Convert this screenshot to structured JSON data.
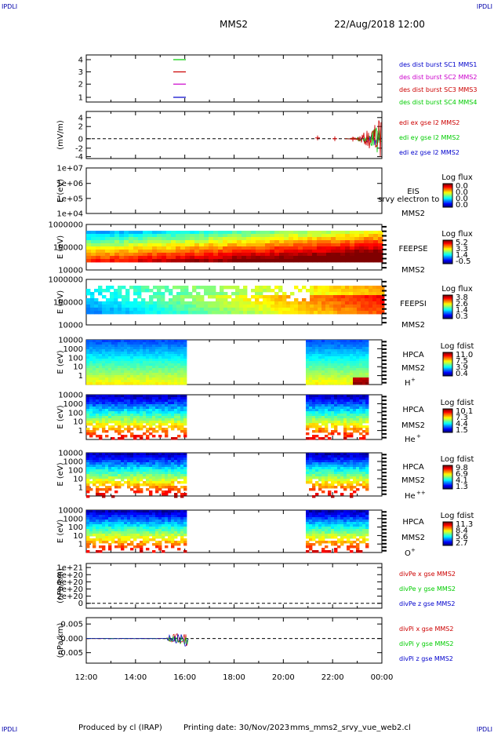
{
  "corner_marks": {
    "tl": "IPDLI",
    "tr": "IPDLI",
    "bl": "IPDLI",
    "br": "IPDLI"
  },
  "header": {
    "title": "MMS2",
    "datetime": "22/Aug/2018 12:00"
  },
  "footer": {
    "producer": "Produced by cl (IRAP)",
    "printing": "Printing date: 30/Nov/2023",
    "script": "mms_mms2_srvy_vue_web2.cl"
  },
  "colors": {
    "c1": "#00cc00",
    "c2": "#cc0000",
    "c3": "#cc00cc",
    "c4": "#0000cc",
    "x": "#cc0000",
    "y": "#00cc00",
    "z": "#0000cc"
  },
  "xaxis": {
    "ticks": [
      "12:00",
      "14:00",
      "16:00",
      "18:00",
      "20:00",
      "22:00",
      "00:00"
    ]
  },
  "chart_data": [
    {
      "type": "line",
      "panel": "availability",
      "ylabel": "",
      "yticks": [
        "4",
        "3",
        "2",
        "1"
      ],
      "legend": [
        "des dist burst SC1 MMS1",
        "des dist burst SC2 MMS2",
        "des dist burst SC3 MMS3",
        "des dist burst SC4 MMS4"
      ]
    },
    {
      "type": "line",
      "panel": "edi",
      "ylabel": "(mV/m)",
      "ylim": [
        -4,
        5
      ],
      "yticks": [
        "4",
        "2",
        "0",
        "-2",
        "-4"
      ],
      "legend": [
        "edi ex gse l2 MMS2",
        "edi ey gse l2 MMS2",
        "edi ez gse l2 MMS2"
      ]
    },
    {
      "type": "heatmap",
      "panel": "eis",
      "ylabel": "E (eV)",
      "yticks": [
        "1e+07",
        "1e+06",
        "1e+05",
        "1e+04"
      ],
      "instrument": [
        "EIS",
        "MMS2"
      ],
      "overlay_text": "srvy electron to",
      "colorbar": {
        "title": "Log flux",
        "ticks": [
          "0.0",
          "0.0",
          "0.0",
          "0.0"
        ]
      }
    },
    {
      "type": "heatmap",
      "panel": "feepse",
      "ylabel": "E (eV)",
      "yticks": [
        "1000000",
        "100000",
        "10000"
      ],
      "instrument": [
        "FEEPSE",
        "MMS2"
      ],
      "colorbar": {
        "title": "Log flux",
        "ticks": [
          "5.2",
          "3.3",
          "1.4",
          "-0.5"
        ]
      }
    },
    {
      "type": "heatmap",
      "panel": "feepsi",
      "ylabel": "E (eV)",
      "yticks": [
        "1000000",
        "100000",
        "10000"
      ],
      "instrument": [
        "FEEPSI",
        "MMS2"
      ],
      "colorbar": {
        "title": "Log flux",
        "ticks": [
          "3.8",
          "2.6",
          "1.4",
          "0.3"
        ]
      }
    },
    {
      "type": "heatmap",
      "panel": "hpca_h",
      "ylabel": "E (eV)",
      "yticks": [
        "10000",
        "1000",
        "100",
        "10",
        "1"
      ],
      "instrument": [
        "HPCA",
        "MMS2"
      ],
      "species": "H",
      "species_sup": "+",
      "colorbar": {
        "title": "Log fdist",
        "ticks": [
          "11.0",
          "7.5",
          "3.9",
          "0.4"
        ]
      }
    },
    {
      "type": "heatmap",
      "panel": "hpca_he",
      "ylabel": "E (eV)",
      "yticks": [
        "10000",
        "1000",
        "100",
        "10",
        "1"
      ],
      "instrument": [
        "HPCA",
        "MMS2"
      ],
      "species": "He",
      "species_sup": "+",
      "colorbar": {
        "title": "Log fdist",
        "ticks": [
          "10.1",
          "7.3",
          "4.4",
          "1.5"
        ]
      }
    },
    {
      "type": "heatmap",
      "panel": "hpca_hepp",
      "ylabel": "E (eV)",
      "yticks": [
        "10000",
        "1000",
        "100",
        "10",
        "1"
      ],
      "instrument": [
        "HPCA",
        "MMS2"
      ],
      "species": "He",
      "species_sup": "++",
      "colorbar": {
        "title": "Log fdist",
        "ticks": [
          "9.8",
          "6.9",
          "4.1",
          "1.3"
        ]
      }
    },
    {
      "type": "heatmap",
      "panel": "hpca_o",
      "ylabel": "E (eV)",
      "yticks": [
        "10000",
        "1000",
        "100",
        "10",
        "1"
      ],
      "instrument": [
        "HPCA",
        "MMS2"
      ],
      "species": "O",
      "species_sup": "+",
      "colorbar": {
        "title": "Log fdist",
        "ticks": [
          "11.3",
          "8.4",
          "5.6",
          "2.7"
        ]
      }
    },
    {
      "type": "line",
      "panel": "divpe",
      "ylabel": "(nPa/km)",
      "ylim": [
        -1e+20,
        1.15e+21
      ],
      "yticks": [
        "1e+21",
        "8e+20",
        "6e+20",
        "4e+20",
        "2e+20",
        "0"
      ],
      "legend": [
        "divPe x gse MMS2",
        "divPe y gse MMS2",
        "divPe z gse MMS2"
      ]
    },
    {
      "type": "line",
      "panel": "divpi",
      "ylabel": "(nPa/km)",
      "ylim": [
        -0.008,
        0.007
      ],
      "yticks": [
        "0.005",
        "0.000",
        "-0.005"
      ],
      "legend": [
        "divPi x gse MMS2",
        "divPi y gse MMS2",
        "divPi z gse MMS2"
      ]
    }
  ]
}
